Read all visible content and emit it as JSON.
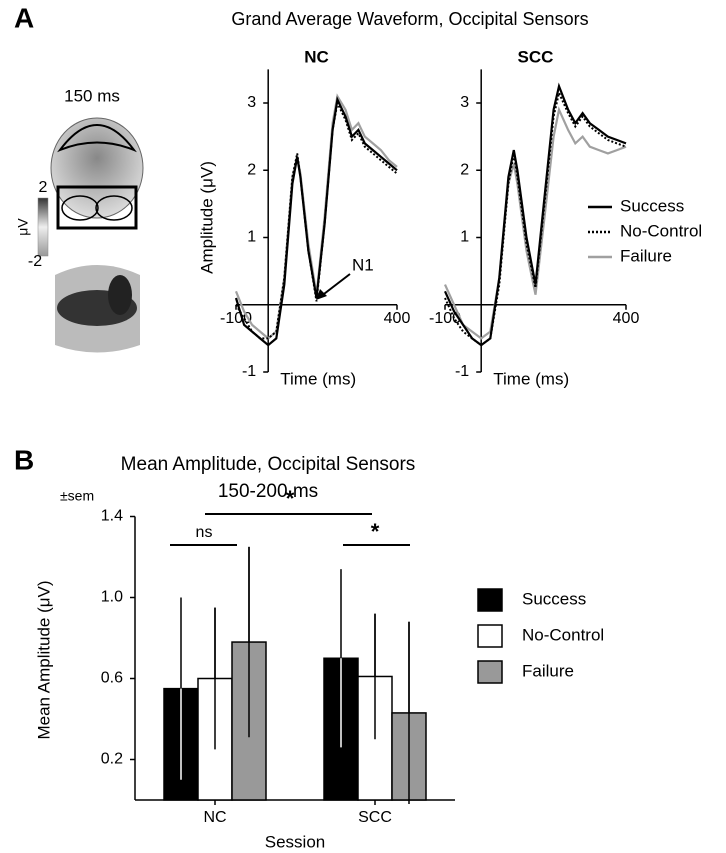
{
  "panel_labels": [
    "A",
    "B"
  ],
  "panel_a_title": "Grand Average Waveform, Occipital Sensors",
  "topography": {
    "time": "150 ms",
    "colorbar_label": "μV",
    "colorbar_ticks": [
      2,
      -2
    ]
  },
  "chart_data": [
    {
      "type": "line",
      "title": "NC",
      "ylabel": "Amplitude (μV)",
      "xlabel": "Time (ms)",
      "x": [
        -100,
        -75,
        -50,
        -25,
        0,
        25,
        50,
        75,
        90,
        100,
        125,
        150,
        175,
        200,
        215,
        240,
        260,
        280,
        300,
        325,
        350,
        375,
        400
      ],
      "series": [
        {
          "name": "Success",
          "color": "#000000",
          "style": "solid",
          "values": [
            0.1,
            -0.3,
            -0.4,
            -0.5,
            -0.6,
            -0.5,
            0.3,
            1.8,
            2.2,
            1.9,
            0.8,
            0.1,
            1.2,
            2.6,
            3.05,
            2.8,
            2.5,
            2.6,
            2.4,
            2.3,
            2.2,
            2.1,
            2.0
          ]
        },
        {
          "name": "No-Control",
          "color": "#000000",
          "style": "dotted",
          "values": [
            0.0,
            -0.2,
            -0.4,
            -0.5,
            -0.5,
            -0.4,
            0.4,
            1.9,
            2.25,
            1.9,
            0.8,
            0.05,
            1.2,
            2.6,
            3.0,
            2.75,
            2.45,
            2.55,
            2.35,
            2.25,
            2.15,
            2.05,
            1.95
          ]
        },
        {
          "name": "Failure",
          "color": "#a0a0a0",
          "style": "solid",
          "values": [
            0.2,
            -0.1,
            -0.3,
            -0.4,
            -0.5,
            -0.4,
            0.4,
            1.9,
            2.2,
            1.95,
            0.9,
            0.15,
            1.3,
            2.7,
            3.1,
            2.9,
            2.6,
            2.7,
            2.5,
            2.4,
            2.3,
            2.15,
            2.05
          ]
        }
      ],
      "xlim": [
        -100,
        400
      ],
      "xticks": [
        -100,
        400
      ],
      "ylim": [
        -1,
        3.5
      ],
      "yticks": [
        -1,
        1,
        2,
        3
      ],
      "annotation": "N1"
    },
    {
      "type": "line",
      "title": "SCC",
      "xlabel": "Time (ms)",
      "x": [
        -100,
        -75,
        -50,
        -25,
        0,
        25,
        50,
        75,
        90,
        100,
        125,
        150,
        175,
        200,
        215,
        240,
        260,
        280,
        300,
        325,
        350,
        375,
        400
      ],
      "series": [
        {
          "name": "Success",
          "color": "#000000",
          "style": "solid",
          "values": [
            0.2,
            -0.1,
            -0.3,
            -0.5,
            -0.6,
            -0.5,
            0.4,
            1.9,
            2.3,
            2.0,
            1.0,
            0.3,
            1.6,
            2.9,
            3.25,
            2.9,
            2.7,
            2.85,
            2.7,
            2.6,
            2.5,
            2.45,
            2.4
          ]
        },
        {
          "name": "No-Control",
          "color": "#000000",
          "style": "dotted",
          "values": [
            0.1,
            -0.2,
            -0.4,
            -0.5,
            -0.6,
            -0.5,
            0.3,
            1.8,
            2.25,
            1.9,
            0.9,
            0.25,
            1.5,
            2.8,
            3.15,
            2.85,
            2.65,
            2.8,
            2.65,
            2.55,
            2.45,
            2.4,
            2.35
          ]
        },
        {
          "name": "Failure",
          "color": "#a0a0a0",
          "style": "solid",
          "values": [
            0.3,
            0.0,
            -0.3,
            -0.4,
            -0.5,
            -0.4,
            0.4,
            1.8,
            2.1,
            1.8,
            0.8,
            0.15,
            1.3,
            2.5,
            2.9,
            2.6,
            2.4,
            2.5,
            2.35,
            2.3,
            2.25,
            2.3,
            2.35
          ]
        }
      ],
      "xlim": [
        -100,
        400
      ],
      "xticks": [
        -100,
        400
      ],
      "ylim": [
        -1,
        3.5
      ],
      "yticks": [
        -1,
        1,
        2,
        3
      ],
      "legend": "right"
    },
    {
      "type": "bar",
      "title": "Mean Amplitude, Occipital Sensors",
      "subtitle": "150-200 ms",
      "error_label": "±sem",
      "ylabel": "Mean Amplitude (μV)",
      "xlabel": "Session",
      "categories": [
        "NC",
        "SCC"
      ],
      "series": [
        {
          "name": "Success",
          "color": "#000000",
          "values": [
            0.55,
            0.7
          ],
          "errors": [
            0.45,
            0.44
          ]
        },
        {
          "name": "No-Control",
          "color": "#ffffff",
          "values": [
            0.6,
            0.61
          ],
          "errors": [
            0.35,
            0.31
          ]
        },
        {
          "name": "Failure",
          "color": "#999999",
          "values": [
            0.78,
            0.43
          ],
          "errors": [
            0.47,
            0.45
          ]
        }
      ],
      "ylim": [
        0,
        1.4
      ],
      "yticks": [
        0.2,
        0.6,
        {
          "value": 1.0,
          "label": "1.0"
        },
        1.4
      ],
      "annotations": [
        "ns",
        "*",
        "*"
      ],
      "legend": "right"
    }
  ]
}
